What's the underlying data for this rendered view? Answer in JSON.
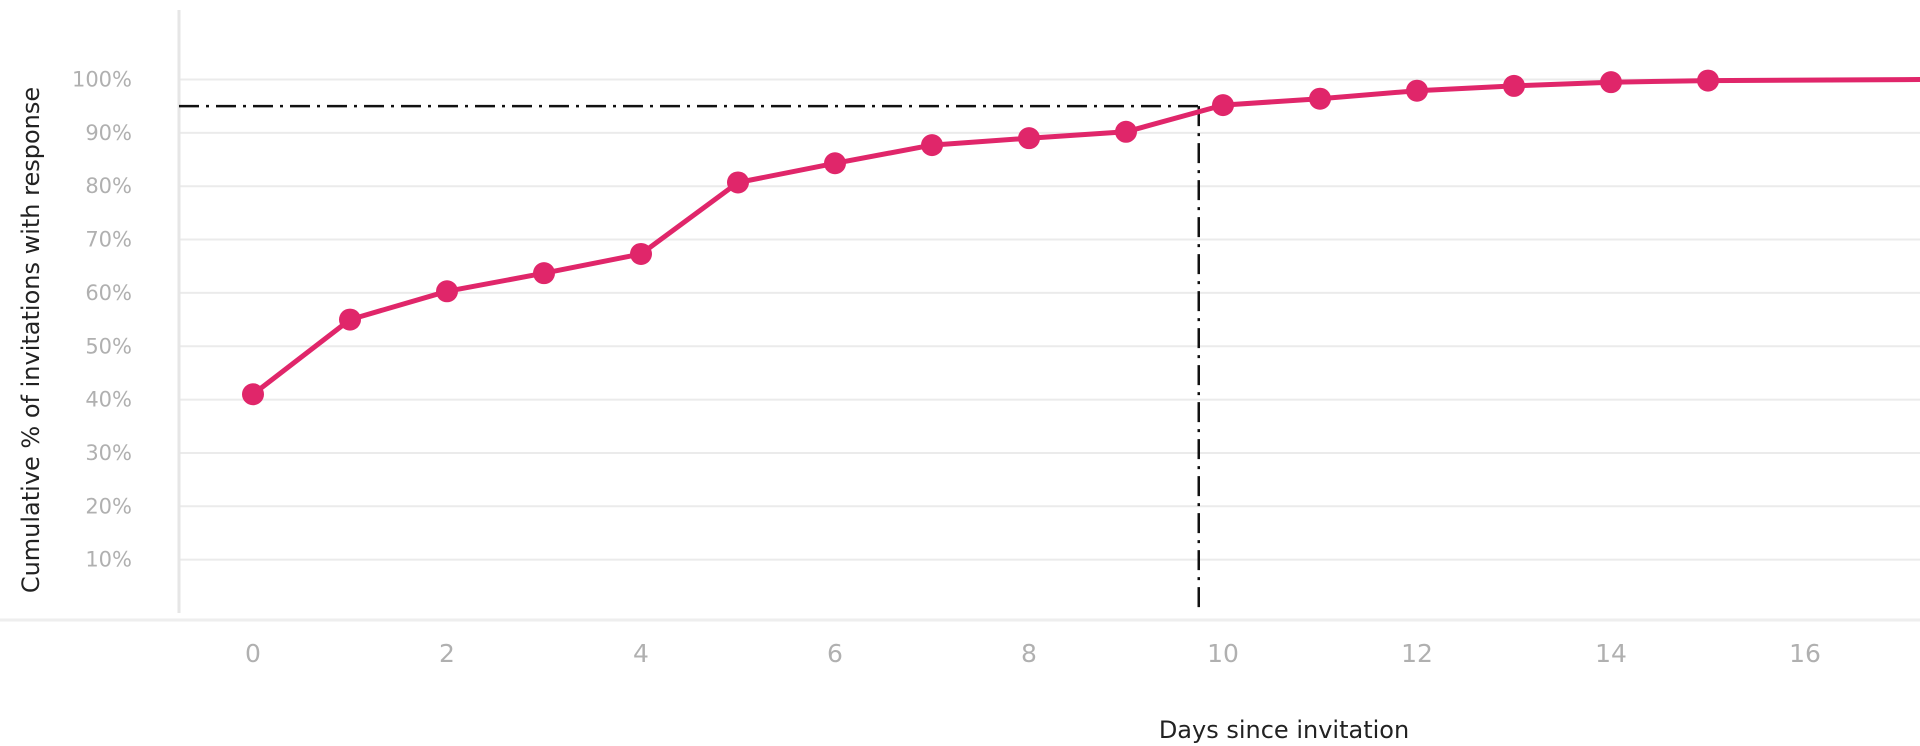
{
  "chart_data": {
    "type": "line",
    "title": "",
    "xlabel": "Days since invitation",
    "ylabel": "Cumulative % of invitations with response",
    "x": [
      0,
      1,
      2,
      3,
      4,
      5,
      6,
      7,
      8,
      9,
      10,
      11,
      12,
      13,
      14,
      15
    ],
    "series": [
      {
        "values": [
          41,
          55,
          60.3,
          63.7,
          67.3,
          80.7,
          84.3,
          87.7,
          89,
          90.2,
          95.2,
          96.4,
          97.9,
          98.8,
          99.5,
          99.8
        ]
      }
    ],
    "line_extends_to_x": 17.2,
    "line_end_value": 100,
    "x_ticks": [
      "0",
      "2",
      "4",
      "6",
      "8",
      "10",
      "12",
      "14",
      "16"
    ],
    "y_ticks": [
      "10%",
      "20%",
      "30%",
      "40%",
      "50%",
      "60%",
      "70%",
      "80%",
      "90%",
      "100%"
    ],
    "xlim": [
      -0.75,
      17.2
    ],
    "ylim": [
      0,
      112.5
    ],
    "reference_lines": [
      {
        "orientation": "horizontal",
        "value": 95,
        "style": "dash-dot"
      },
      {
        "orientation": "vertical",
        "value": 9.75,
        "style": "dash-dot"
      }
    ],
    "grid": true,
    "legend": "none",
    "colors": {
      "series": "#e0266a",
      "reference": "#111111",
      "grid": "#ebebeb",
      "tick_text": "#b0b0b0"
    }
  }
}
